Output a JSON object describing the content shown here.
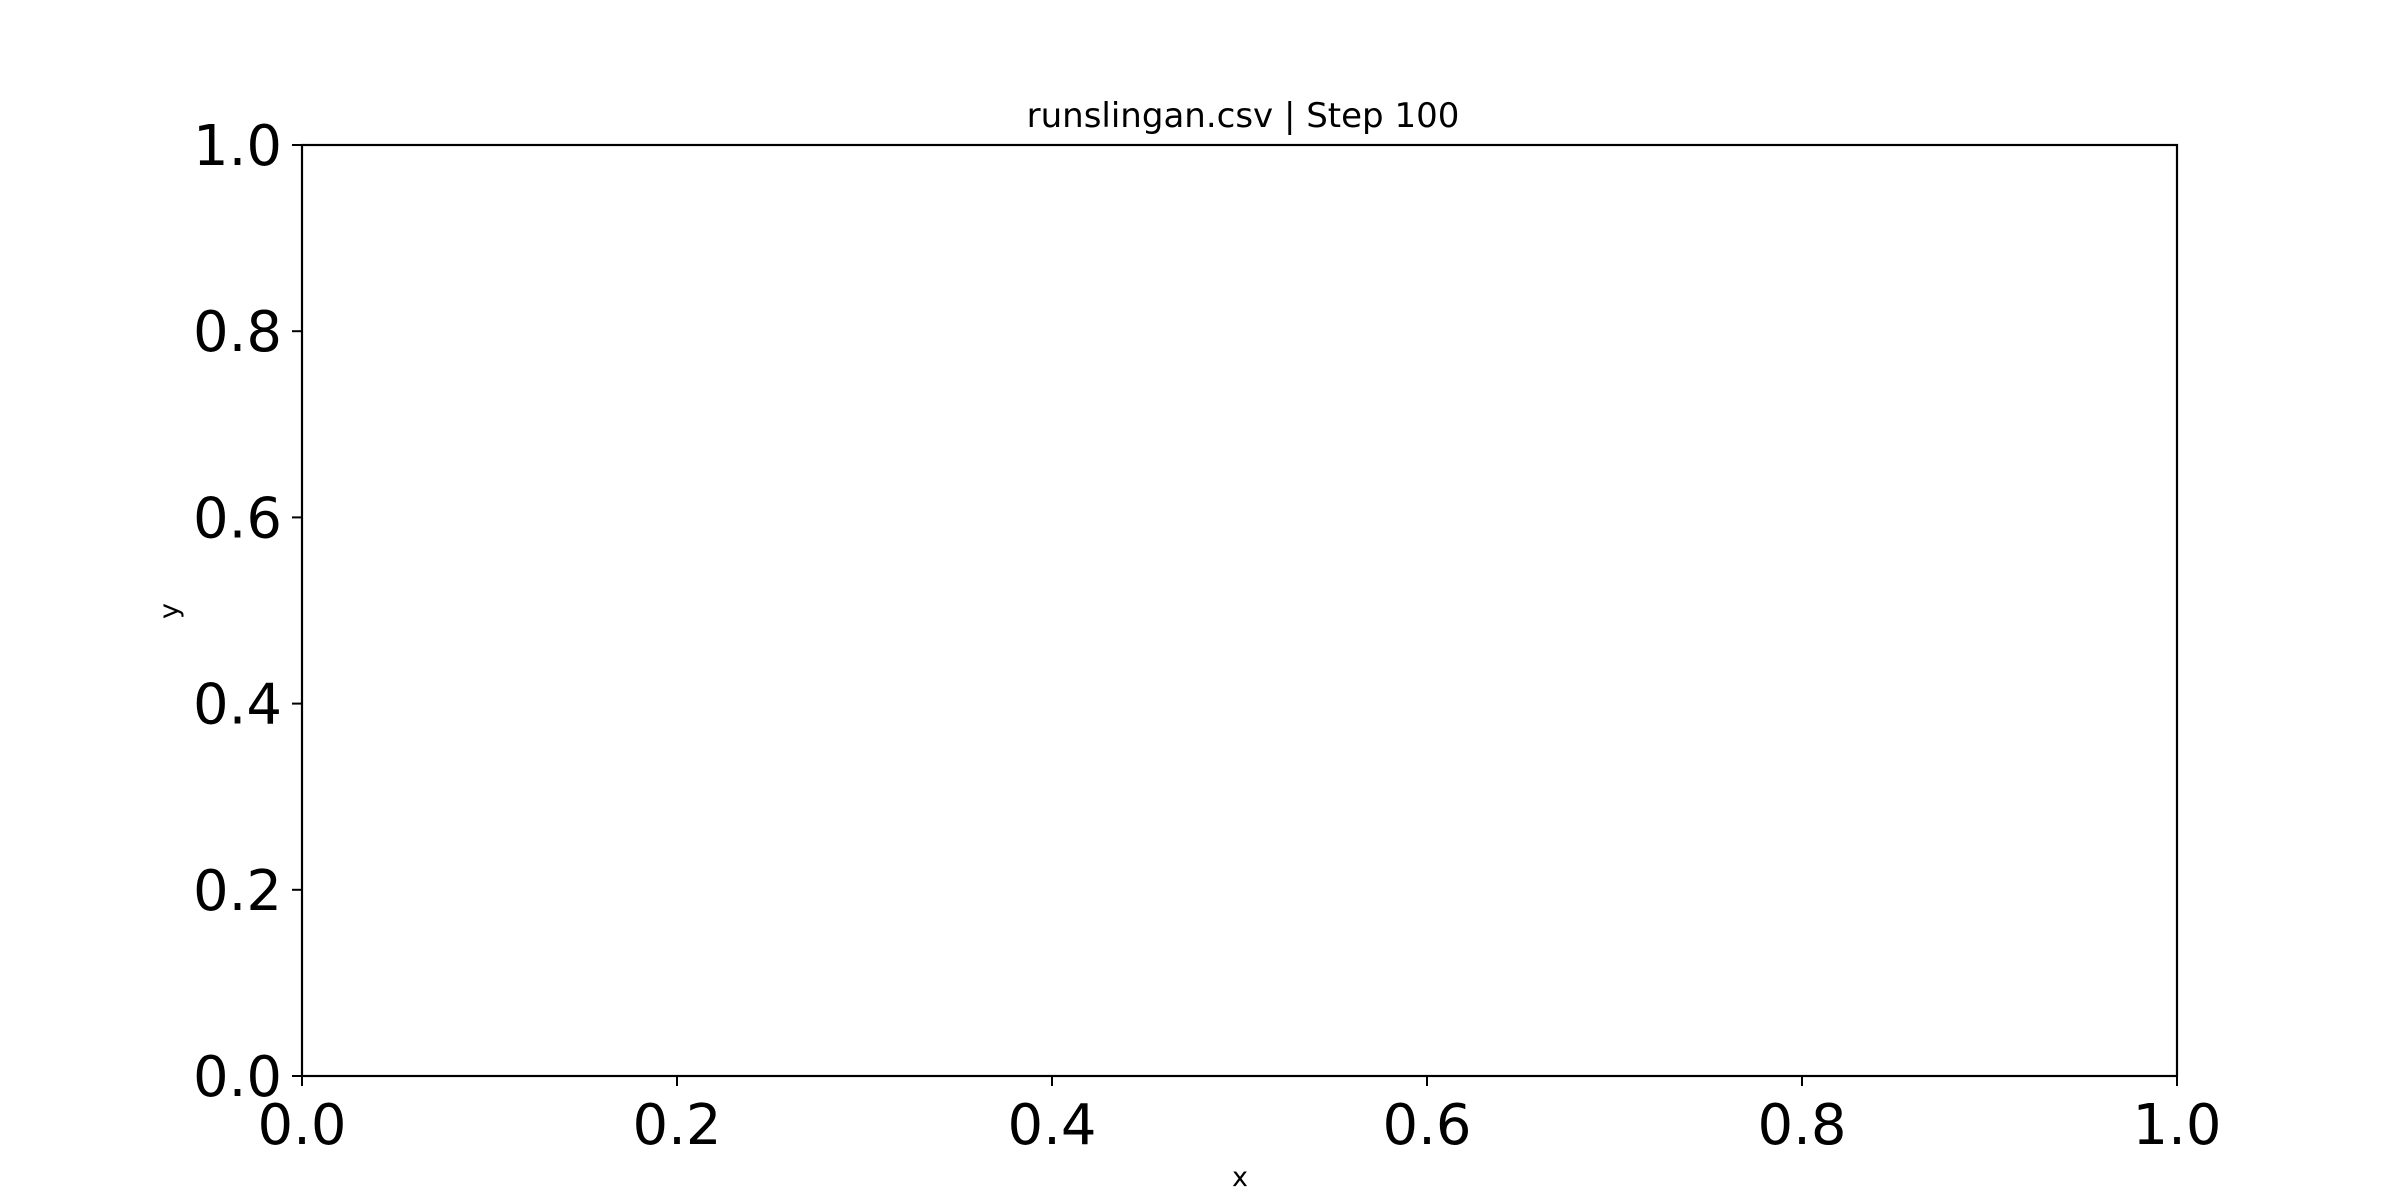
{
  "chart_data": {
    "type": "line",
    "title": "runslingan.csv | Step 100",
    "xlabel": "x",
    "ylabel": "y",
    "xlim": [
      0.0,
      1.0
    ],
    "ylim": [
      0.0,
      1.0
    ],
    "x_ticks": [
      0.0,
      0.2,
      0.4,
      0.6,
      0.8,
      1.0
    ],
    "y_ticks": [
      0.0,
      0.2,
      0.4,
      0.6,
      0.8,
      1.0
    ],
    "x_tick_labels": [
      "0.0",
      "0.2",
      "0.4",
      "0.6",
      "0.8",
      "1.0"
    ],
    "y_tick_labels": [
      "0.0",
      "0.2",
      "0.4",
      "0.6",
      "0.8",
      "1.0"
    ],
    "grid": false,
    "series": []
  }
}
